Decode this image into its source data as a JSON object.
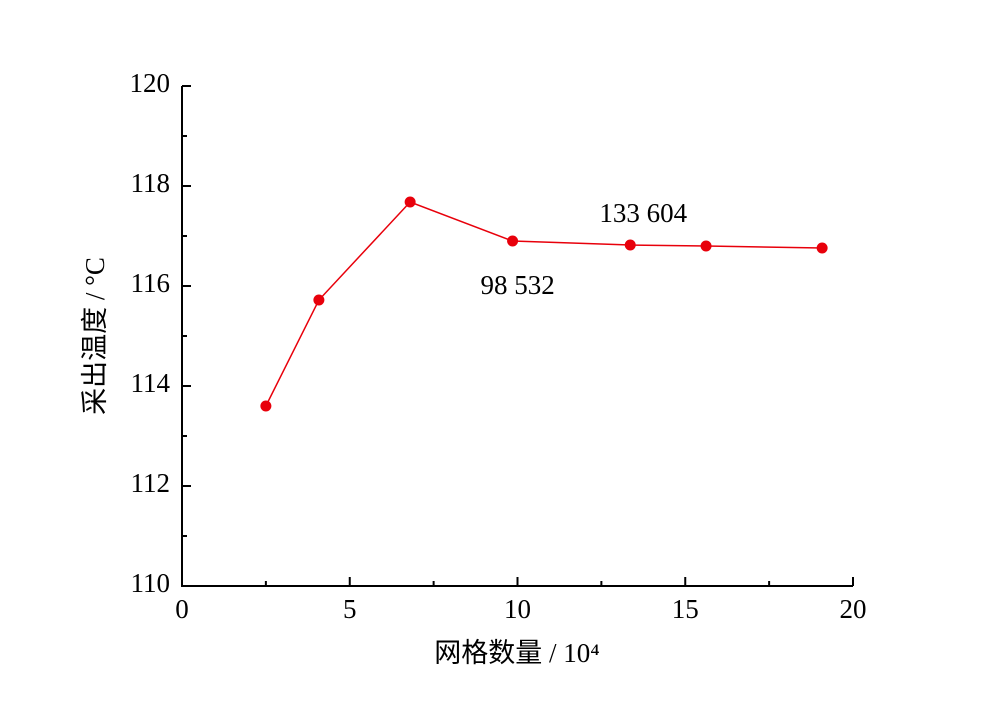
{
  "chart_data": {
    "type": "line",
    "xlabel": "网格数量 / 10⁴",
    "ylabel": "采出温度 / °C",
    "x": [
      2.5,
      4.08,
      6.8,
      9.8532,
      13.3604,
      15.62,
      19.08
    ],
    "series": [
      {
        "color": "#e8000b",
        "values": [
          113.6,
          115.72,
          117.68,
          116.9,
          116.82,
          116.8,
          116.76
        ]
      }
    ],
    "xlim": [
      0,
      20
    ],
    "xticks": [
      0,
      5,
      10,
      15,
      20
    ],
    "ylim": [
      110,
      120
    ],
    "yticks": [
      110,
      112,
      114,
      116,
      118,
      120
    ],
    "annotations": [
      "98 532",
      "133 604"
    ],
    "grid": false
  }
}
